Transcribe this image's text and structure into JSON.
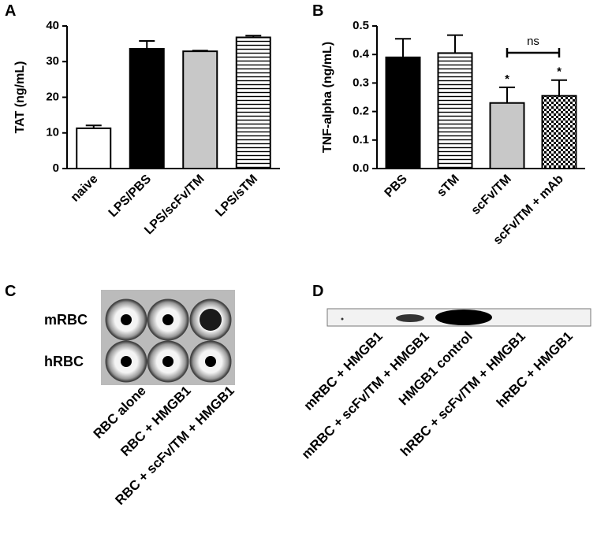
{
  "chart_data": [
    {
      "type": "bar",
      "panel": "A",
      "y_label": "TAT (ng/mL)",
      "categories": [
        "naive",
        "LPS/PBS",
        "LPS/scFv/TM",
        "LPS/sTM"
      ],
      "values": [
        11.3,
        33.6,
        32.9,
        36.8
      ],
      "errors": [
        0.8,
        2.2,
        0.2,
        0.5
      ],
      "fills": [
        "white",
        "black",
        "#c8c8c8",
        "hstripes"
      ],
      "ylim": [
        0,
        40
      ],
      "yticks": [
        0,
        10,
        20,
        30,
        40
      ]
    },
    {
      "type": "bar",
      "panel": "B",
      "y_label": "TNF-alpha (ng/mL)",
      "categories": [
        "PBS",
        "sTM",
        "scFv/TM",
        "scFv/TM + mAb"
      ],
      "values": [
        0.39,
        0.405,
        0.23,
        0.255
      ],
      "errors": [
        0.065,
        0.063,
        0.055,
        0.055
      ],
      "fills": [
        "black",
        "hstripes",
        "#c8c8c8",
        "checker"
      ],
      "ylim": [
        0,
        0.5
      ],
      "yticks": [
        {
          "value": 0,
          "label": "0.0"
        },
        0.1,
        0.2,
        0.3,
        0.4,
        0.5
      ],
      "annotations": [
        {
          "text": "*",
          "x": "scFv/TM"
        },
        {
          "text": "*",
          "x": "scFv/TM + mAb"
        }
      ],
      "brackets": [
        {
          "text": "ns",
          "from": "scFv/TM",
          "to": "scFv/TM + mAb"
        }
      ]
    }
  ],
  "panel_c": {
    "label": "C",
    "rows": [
      "mRBC",
      "hRBC"
    ],
    "columns": [
      "RBC alone",
      "RBC + HMGB1",
      "RBC + scFv/TM + HMGB1"
    ]
  },
  "panel_d": {
    "label": "D",
    "lanes": [
      "mRBC + HMGB1",
      "mRBC + scFv/TM + HMGB1",
      "HMGB1 control",
      "hRBC + scFv/TM + HMGB1",
      "hRBC + HMGB1"
    ]
  }
}
